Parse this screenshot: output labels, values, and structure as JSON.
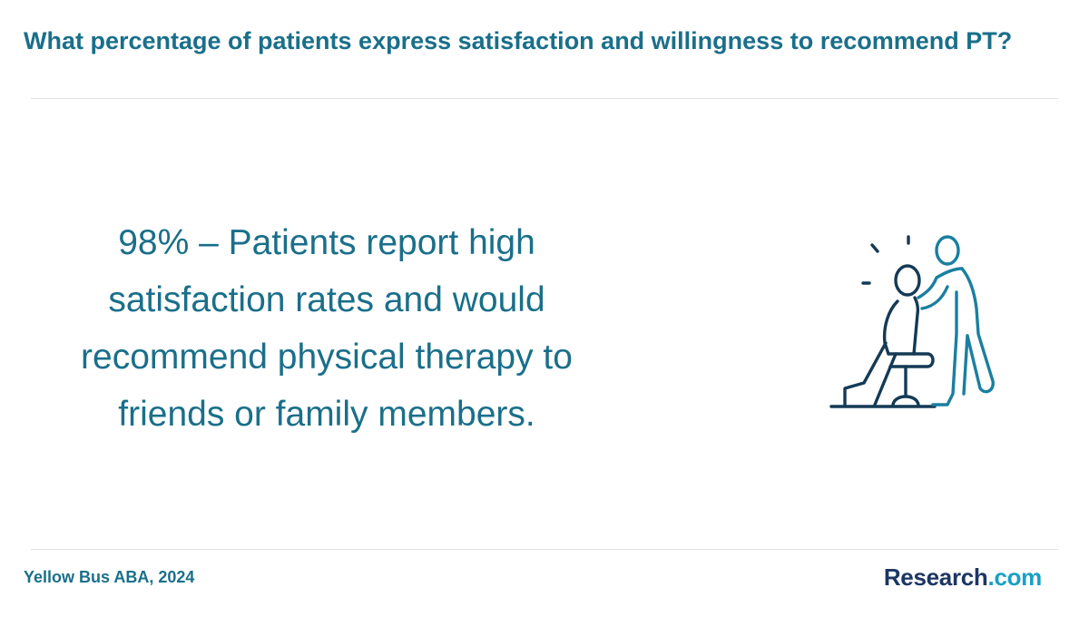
{
  "header": {
    "title": "What percentage of patients express satisfaction and willingness to recommend PT?"
  },
  "main": {
    "statement": "98% – Patients report high satisfaction rates and would recommend physical therapy to friends or family members.",
    "illustration_icon": "physical-therapist-with-seated-patient-icon"
  },
  "footer": {
    "source": "Yellow Bus ABA, 2024",
    "logo_main": "Research",
    "logo_accent": ".com"
  },
  "colors": {
    "title": "#1a6f8a",
    "patient_stroke": "#143a55",
    "therapist_stroke": "#1a7fa0",
    "logo_main": "#1c3664",
    "logo_accent": "#1aa0c4",
    "rule": "#e2e2e2"
  }
}
